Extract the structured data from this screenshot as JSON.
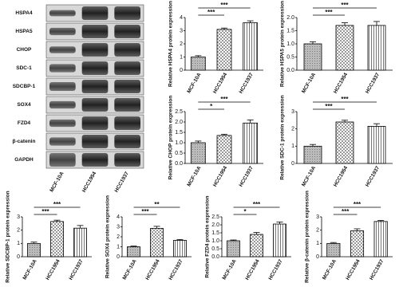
{
  "blot": {
    "proteins": [
      "HSPA4",
      "HSPA5",
      "CHOP",
      "SDC-1",
      "SDCBP-1",
      "SOX4",
      "FZD4",
      "β-catenin",
      "GAPDH"
    ],
    "samples": [
      "MCF-10A",
      "HCC1954",
      "HCC1937"
    ]
  },
  "chart_data": [
    {
      "type": "bar",
      "ylabel": "Relative HSPA4 protein expression",
      "categories": [
        "MCF-10A",
        "HCC1954",
        "HCC1937"
      ],
      "values": [
        1.0,
        3.1,
        3.6
      ],
      "errors": [
        0.1,
        0.1,
        0.15
      ],
      "ylim": [
        0,
        4
      ],
      "yticks": [
        0,
        1,
        2,
        3,
        4
      ],
      "annotations": [
        {
          "label": "***",
          "pair": [
            "MCF-10A",
            "HCC1954"
          ]
        },
        {
          "label": "***",
          "pair": [
            "MCF-10A",
            "HCC1937"
          ]
        }
      ]
    },
    {
      "type": "bar",
      "ylabel": "Relative HSPA5 protein expression",
      "categories": [
        "MCF-10A",
        "HCC1954",
        "HCC1937"
      ],
      "values": [
        1.0,
        1.7,
        1.7
      ],
      "errors": [
        0.08,
        0.1,
        0.15
      ],
      "ylim": [
        0,
        2
      ],
      "yticks": [
        {
          "value": 0,
          "label": "0.0"
        },
        {
          "value": 0.5,
          "label": "0.5"
        },
        {
          "value": 1,
          "label": "1.0"
        },
        {
          "value": 1.5,
          "label": "1.5"
        },
        {
          "value": 2,
          "label": "2.0"
        }
      ],
      "annotations": [
        {
          "label": "***",
          "pair": [
            "MCF-10A",
            "HCC1954"
          ]
        },
        {
          "label": "***",
          "pair": [
            "MCF-10A",
            "HCC1937"
          ]
        }
      ]
    },
    {
      "type": "bar",
      "ylabel": "Relative CHOP protein expression",
      "categories": [
        "MCF-10A",
        "HCC1954",
        "HCC1937"
      ],
      "values": [
        1.0,
        1.35,
        1.95
      ],
      "errors": [
        0.08,
        0.06,
        0.15
      ],
      "ylim": [
        0,
        2.5
      ],
      "yticks": [
        {
          "value": 0,
          "label": "0.0"
        },
        {
          "value": 0.5,
          "label": "0.5"
        },
        {
          "value": 1,
          "label": "1.0"
        },
        {
          "value": 1.5,
          "label": "1.5"
        },
        {
          "value": 2,
          "label": "2.0"
        },
        {
          "value": 2.5,
          "label": "2.5"
        }
      ],
      "annotations": [
        {
          "label": "*",
          "pair": [
            "MCF-10A",
            "HCC1954"
          ]
        },
        {
          "label": "***",
          "pair": [
            "MCF-10A",
            "HCC1937"
          ]
        }
      ]
    },
    {
      "type": "bar",
      "ylabel": "Relative SDC-1 protein expression",
      "categories": [
        "MCF-10A",
        "HCC1954",
        "HCC1937"
      ],
      "values": [
        1.0,
        2.4,
        2.15
      ],
      "errors": [
        0.1,
        0.1,
        0.15
      ],
      "ylim": [
        0,
        3
      ],
      "yticks": [
        0,
        1,
        2,
        3
      ],
      "annotations": [
        {
          "label": "***",
          "pair": [
            "MCF-10A",
            "HCC1954"
          ]
        },
        {
          "label": "***",
          "pair": [
            "MCF-10A",
            "HCC1937"
          ]
        }
      ]
    },
    {
      "type": "bar",
      "ylabel": "Relative SDCBP-1 protein expression",
      "categories": [
        "MCF-10A",
        "HCC1954",
        "HCC1937"
      ],
      "values": [
        1.0,
        2.65,
        2.15
      ],
      "errors": [
        0.1,
        0.1,
        0.2
      ],
      "ylim": [
        0,
        3
      ],
      "yticks": [
        0,
        1,
        2,
        3
      ],
      "annotations": [
        {
          "label": "***",
          "pair": [
            "MCF-10A",
            "HCC1954"
          ]
        },
        {
          "label": "***",
          "pair": [
            "MCF-10A",
            "HCC1937"
          ]
        }
      ]
    },
    {
      "type": "bar",
      "ylabel": "Relative SOX4 protein expression",
      "categories": [
        "MCF-10A",
        "HCC1954",
        "HCC1937"
      ],
      "values": [
        1.0,
        2.85,
        1.65
      ],
      "errors": [
        0.07,
        0.2,
        0.08
      ],
      "ylim": [
        0,
        4
      ],
      "yticks": [
        0,
        1,
        2,
        3,
        4
      ],
      "annotations": [
        {
          "label": "***",
          "pair": [
            "MCF-10A",
            "HCC1954"
          ]
        },
        {
          "label": "**",
          "pair": [
            "MCF-10A",
            "HCC1937"
          ]
        }
      ]
    },
    {
      "type": "bar",
      "ylabel": "Relative FZD4 protein expression",
      "categories": [
        "MCF-10A",
        "HCC1954",
        "HCC1937"
      ],
      "values": [
        1.0,
        1.4,
        2.05
      ],
      "errors": [
        0.05,
        0.12,
        0.13
      ],
      "ylim": [
        0,
        2.5
      ],
      "yticks": [
        {
          "value": 0,
          "label": "0.0"
        },
        {
          "value": 0.5,
          "label": "0.5"
        },
        {
          "value": 1,
          "label": "1.0"
        },
        {
          "value": 1.5,
          "label": "1.5"
        },
        {
          "value": 2,
          "label": "2.0"
        },
        {
          "value": 2.5,
          "label": "2.5"
        }
      ],
      "annotations": [
        {
          "label": "*",
          "pair": [
            "MCF-10A",
            "HCC1954"
          ]
        },
        {
          "label": "***",
          "pair": [
            "MCF-10A",
            "HCC1937"
          ]
        }
      ]
    },
    {
      "type": "bar",
      "ylabel": "Relative β-catenin protein expression",
      "categories": [
        "MCF-10A",
        "HCC1954",
        "HCC1937"
      ],
      "values": [
        1.0,
        1.95,
        2.65
      ],
      "errors": [
        0.07,
        0.15,
        0.08
      ],
      "ylim": [
        0,
        3
      ],
      "yticks": [
        0,
        1,
        2,
        3
      ],
      "annotations": [
        {
          "label": "***",
          "pair": [
            "MCF-10A",
            "HCC1954"
          ]
        },
        {
          "label": "***",
          "pair": [
            "MCF-10A",
            "HCC1937"
          ]
        }
      ]
    }
  ]
}
